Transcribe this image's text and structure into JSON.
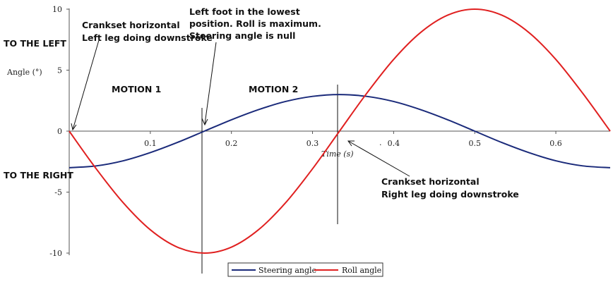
{
  "chart_data": {
    "type": "line",
    "xlabel": "Time (s)",
    "ylabel": "Angle (°)",
    "xlim": [
      0,
      0.667
    ],
    "ylim": [
      -10,
      10
    ],
    "x_ticks": [
      "0.1",
      "0.2",
      "0.3",
      "0.4",
      "0.5",
      "0.6"
    ],
    "y_ticks": [
      "10",
      "5",
      "0",
      "-5",
      "-10"
    ],
    "x": [
      0,
      0.0333,
      0.0667,
      0.1,
      0.1333,
      0.1667,
      0.2,
      0.2333,
      0.2667,
      0.3,
      0.3333,
      0.3667,
      0.4,
      0.4333,
      0.4667,
      0.5,
      0.5333,
      0.5667,
      0.6,
      0.6333,
      0.667
    ],
    "series": [
      {
        "name": "Steering angle",
        "color": "#1a2a7a",
        "values": [
          -3.0,
          -2.85,
          -2.43,
          -1.76,
          -0.93,
          0.0,
          0.93,
          1.76,
          2.43,
          2.85,
          3.0,
          2.85,
          2.43,
          1.76,
          0.93,
          0.0,
          -0.93,
          -1.76,
          -2.43,
          -2.85,
          -3.0
        ]
      },
      {
        "name": "Roll angle",
        "color": "#e02020",
        "values": [
          0.0,
          -3.09,
          -5.88,
          -8.09,
          -9.51,
          -10.0,
          -9.51,
          -8.09,
          -5.88,
          -3.09,
          0.0,
          3.09,
          5.88,
          8.09,
          9.51,
          10.0,
          9.51,
          8.09,
          5.88,
          3.09,
          0.0
        ]
      }
    ],
    "legend_position": "bottom-center",
    "grid": false
  },
  "annotations": {
    "crank_left_line1": "Crankset horizontal",
    "crank_left_line2": "Left leg doing downstroke",
    "foot_line1": "Left foot in the lowest",
    "foot_line2": "position. Roll is maximum.",
    "foot_line3": "Steering angle is null",
    "to_left": "TO THE LEFT",
    "to_right": "TO THE RIGHT",
    "motion1": "MOTION 1",
    "motion2": "MOTION 2",
    "crank_right_line1": "Crankset horizontal",
    "crank_right_line2": "Right leg doing downstroke",
    "stray_dot": "."
  }
}
